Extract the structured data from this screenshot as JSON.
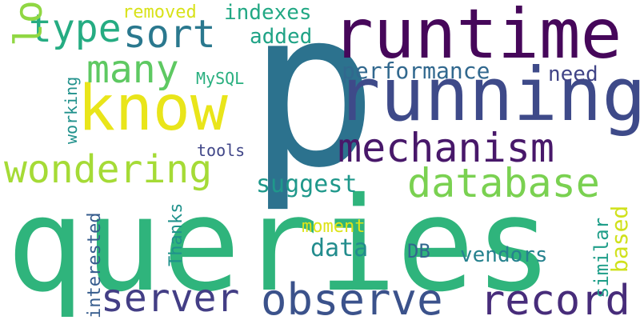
{
  "words": [
    {
      "text": "queries",
      "color": "#2fb47c"
    },
    {
      "text": "p",
      "color": "#2c728e"
    },
    {
      "text": "running",
      "color": "#3e4a89"
    },
    {
      "text": "runtime",
      "color": "#46075a"
    },
    {
      "text": "know",
      "color": "#e9e51a"
    },
    {
      "text": "observe",
      "color": "#3b528b"
    },
    {
      "text": "record",
      "color": "#472c7a"
    },
    {
      "text": "mechanism",
      "color": "#48186a"
    },
    {
      "text": "database",
      "color": "#7ad151"
    },
    {
      "text": "wondering",
      "color": "#a5db36"
    },
    {
      "text": "server",
      "color": "#433e85"
    },
    {
      "text": "sort",
      "color": "#2a788e"
    },
    {
      "text": "many",
      "color": "#5ec962"
    },
    {
      "text": "type",
      "color": "#25ac82"
    },
    {
      "text": "look",
      "color": "#90d743"
    },
    {
      "text": "performance",
      "color": "#31688e"
    },
    {
      "text": "suggest",
      "color": "#1f988b"
    },
    {
      "text": "data",
      "color": "#228c8d"
    },
    {
      "text": "vendors",
      "color": "#26828e"
    },
    {
      "text": "indexes",
      "color": "#22a884"
    },
    {
      "text": "added",
      "color": "#20a386"
    },
    {
      "text": "need",
      "color": "#414487"
    },
    {
      "text": "based",
      "color": "#d0e11c"
    },
    {
      "text": "similar",
      "color": "#1f9e89"
    },
    {
      "text": "interested",
      "color": "#365c8d"
    },
    {
      "text": "Thanks",
      "color": "#20928c"
    },
    {
      "text": "removed",
      "color": "#d8e219"
    },
    {
      "text": "moment",
      "color": "#dde318"
    },
    {
      "text": "DB",
      "color": "#31688e"
    },
    {
      "text": "tools",
      "color": "#404688"
    },
    {
      "text": "MySQL",
      "color": "#29af7f"
    },
    {
      "text": "working",
      "color": "#21918c"
    }
  ]
}
